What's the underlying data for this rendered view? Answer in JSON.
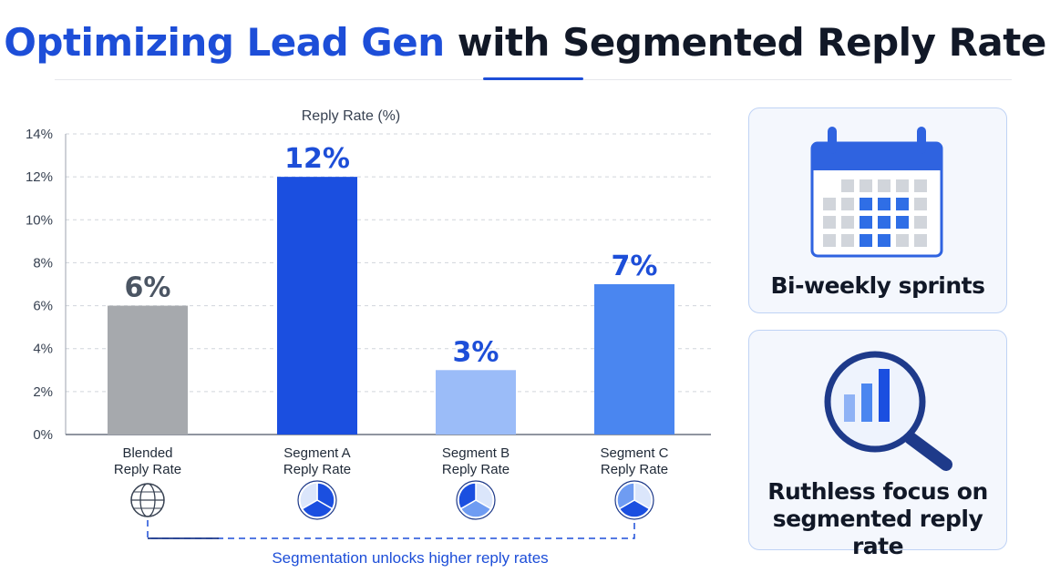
{
  "title": {
    "accent": "Optimizing Lead Gen",
    "rest": "with Segmented Reply Rate"
  },
  "chart_data": {
    "type": "bar",
    "ylabel": "Reply Rate (%)",
    "ylim": [
      0,
      14
    ],
    "yticks": [
      0,
      2,
      4,
      6,
      8,
      10,
      12,
      14
    ],
    "ytick_suffix": "%",
    "grid": true,
    "categories": [
      [
        "Blended",
        "Reply Rate"
      ],
      [
        "Segment A",
        "Reply Rate"
      ],
      [
        "Segment B",
        "Reply Rate"
      ],
      [
        "Segment C",
        "Reply Rate"
      ]
    ],
    "values": [
      6,
      12,
      3,
      7
    ],
    "data_labels": [
      "6%",
      "12%",
      "3%",
      "7%"
    ],
    "colors": [
      "#a6a9ad",
      "#1b4fe0",
      "#9bbcf8",
      "#4a86f0"
    ],
    "label_colors": [
      "#4b5563",
      "#1d4ed8",
      "#1d4ed8",
      "#1d4ed8"
    ],
    "icons": [
      "globe-icon",
      "pie-segment-a-icon",
      "pie-segment-b-icon",
      "pie-segment-c-icon"
    ],
    "annotation": "Segmentation unlocks higher reply rates"
  },
  "cards": [
    {
      "label": "Bi-weekly sprints",
      "icon": "calendar-icon"
    },
    {
      "label_lines": [
        "Ruthless focus on",
        "segmented reply rate"
      ],
      "icon": "magnifier-chart-icon"
    }
  ],
  "colors": {
    "accent": "#1d4ed8",
    "card_border": "#bfd3f5",
    "card_bg": "#f4f7fd"
  }
}
